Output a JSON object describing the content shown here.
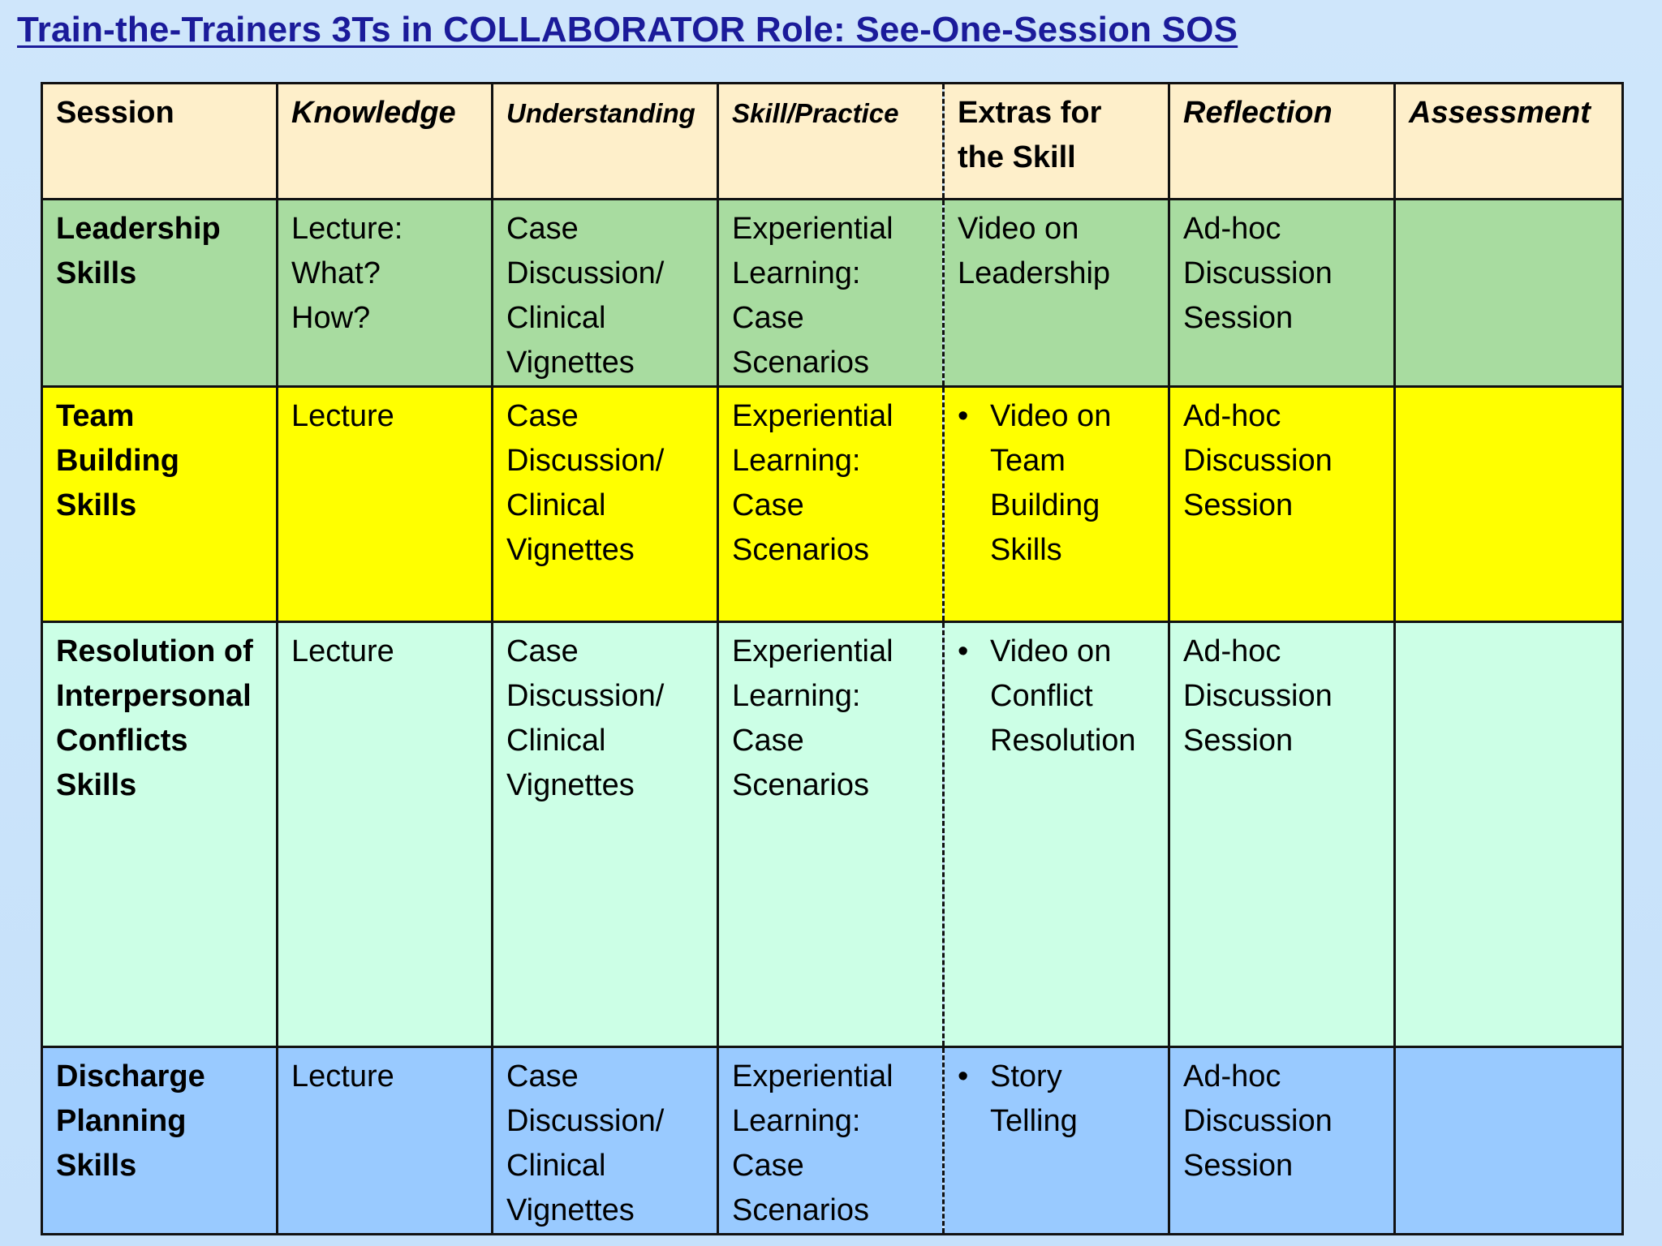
{
  "title": "Train-the-Trainers 3Ts in COLLABORATOR Role: See-One-Session SOS",
  "table": {
    "headers": {
      "session": "Session",
      "knowledge": "Knowledge",
      "understanding": "Understanding",
      "skill_practice": "Skill/Practice",
      "extras": [
        "Extras for",
        "the Skill"
      ],
      "reflection": "Reflection",
      "assessment": "Assessment"
    },
    "rows": [
      {
        "session": [
          "Leadership",
          "Skills"
        ],
        "knowledge": [
          "Lecture:",
          "What?",
          "How?"
        ],
        "understanding": [
          "Case",
          "Discussion/",
          "Clinical",
          "Vignettes"
        ],
        "skill_practice": [
          "Experiential",
          "Learning:",
          "Case",
          "Scenarios"
        ],
        "extras": [
          "Video on",
          "Leadership"
        ],
        "reflection": [
          "Ad-hoc",
          "Discussion",
          "Session"
        ],
        "assessment": ""
      },
      {
        "session": [
          "Team",
          "Building",
          "Skills"
        ],
        "knowledge": [
          "Lecture"
        ],
        "understanding": [
          "Case",
          "Discussion/",
          "Clinical",
          "Vignettes"
        ],
        "skill_practice": [
          "Experiential",
          "Learning:",
          "Case",
          "Scenarios"
        ],
        "extras": [
          "Video on",
          "Team",
          "Building",
          "Skills"
        ],
        "reflection": [
          "Ad-hoc",
          "Discussion",
          "Session"
        ],
        "assessment": ""
      },
      {
        "session": [
          "Resolution of",
          "Interpersonal",
          "Conflicts",
          "Skills"
        ],
        "knowledge": [
          "Lecture"
        ],
        "understanding": [
          "Case",
          "Discussion/",
          "Clinical",
          "Vignettes"
        ],
        "skill_practice": [
          "Experiential",
          "Learning:",
          "Case",
          "Scenarios"
        ],
        "extras": [
          "Video on",
          "Conflict",
          "Resolution"
        ],
        "reflection": [
          "Ad-hoc",
          "Discussion",
          "Session"
        ],
        "assessment": ""
      },
      {
        "session": [
          "Discharge",
          "Planning",
          "Skills"
        ],
        "knowledge": [
          "Lecture"
        ],
        "understanding": [
          "Case",
          "Discussion/",
          "Clinical",
          "Vignettes"
        ],
        "skill_practice": [
          "Experiential",
          "Learning:",
          "Case",
          "Scenarios"
        ],
        "extras": [
          "Story",
          "Telling"
        ],
        "reflection": [
          "Ad-hoc",
          "Discussion",
          "Session"
        ],
        "assessment": ""
      }
    ]
  }
}
